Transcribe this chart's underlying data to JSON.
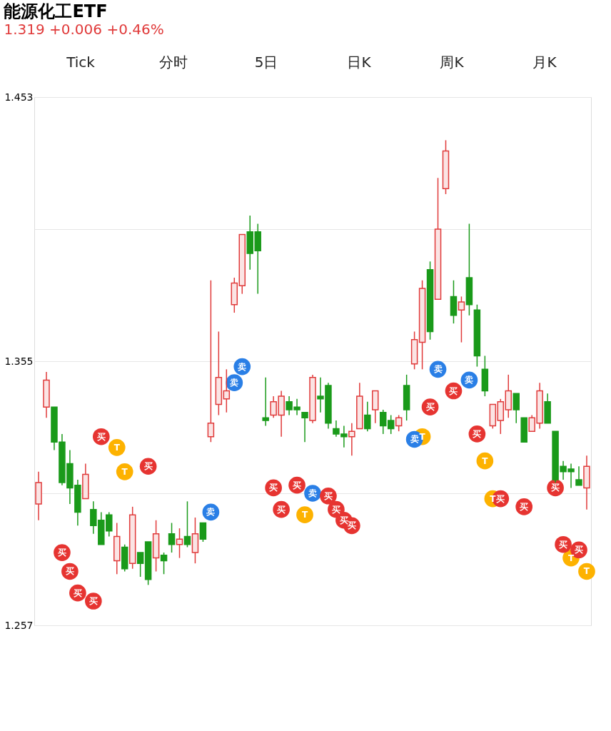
{
  "chart_data": {
    "type": "candlestick",
    "title": "能源化工ETF",
    "subtitle": "1.319 +0.006 +0.46%",
    "categories": [
      null,
      null,
      null,
      null,
      null,
      null,
      null,
      null,
      null,
      null,
      null,
      null,
      null,
      null,
      null,
      null,
      null,
      null,
      null,
      null,
      null,
      null,
      null,
      null,
      null,
      null,
      null,
      null,
      null,
      null,
      null,
      null,
      null,
      null,
      null,
      null,
      null,
      null,
      null,
      null,
      null,
      null,
      null,
      null,
      null,
      null,
      null,
      null,
      null,
      null,
      null,
      null,
      null,
      null,
      null,
      null,
      null,
      null,
      null,
      null,
      null,
      null,
      null,
      null,
      null,
      null,
      null,
      null,
      null,
      null,
      null
    ],
    "ohlc": [
      [
        1.302,
        1.314,
        1.296,
        1.31
      ],
      [
        1.338,
        1.351,
        1.334,
        1.348
      ],
      [
        1.338,
        1.338,
        1.322,
        1.325
      ],
      [
        1.325,
        1.328,
        1.309,
        1.31
      ],
      [
        1.317,
        1.322,
        1.302,
        1.308
      ],
      [
        1.309,
        1.311,
        1.294,
        1.299
      ],
      [
        1.304,
        1.317,
        1.304,
        1.313
      ],
      [
        1.3,
        1.303,
        1.291,
        1.294
      ],
      [
        1.296,
        1.299,
        1.287,
        1.287
      ],
      [
        1.298,
        1.299,
        1.29,
        1.292
      ],
      [
        1.281,
        1.295,
        1.276,
        1.29
      ],
      [
        1.286,
        1.287,
        1.277,
        1.278
      ],
      [
        1.28,
        1.301,
        1.278,
        1.298
      ],
      [
        1.284,
        1.284,
        1.275,
        1.28
      ],
      [
        1.288,
        1.288,
        1.272,
        1.274
      ],
      [
        1.282,
        1.296,
        1.277,
        1.291
      ],
      [
        1.283,
        1.284,
        1.276,
        1.281
      ],
      [
        1.291,
        1.295,
        1.284,
        1.287
      ],
      [
        1.287,
        1.293,
        1.282,
        1.289
      ],
      [
        1.29,
        1.303,
        1.286,
        1.287
      ],
      [
        1.284,
        1.297,
        1.28,
        1.291
      ],
      [
        1.295,
        1.295,
        1.288,
        1.289
      ],
      [
        1.327,
        1.385,
        1.325,
        1.332
      ],
      [
        1.339,
        1.366,
        1.335,
        1.349
      ],
      [
        1.341,
        1.352,
        1.336,
        1.344
      ],
      [
        1.376,
        1.386,
        1.373,
        1.384
      ],
      [
        1.383,
        1.402,
        1.38,
        1.402
      ],
      [
        1.403,
        1.409,
        1.389,
        1.395
      ],
      [
        1.403,
        1.406,
        1.38,
        1.396
      ],
      [
        1.334,
        1.349,
        1.331,
        1.333
      ],
      [
        1.335,
        1.342,
        1.334,
        1.34
      ],
      [
        1.335,
        1.344,
        1.327,
        1.342
      ],
      [
        1.34,
        1.342,
        1.335,
        1.337
      ],
      [
        1.338,
        1.341,
        1.335,
        1.337
      ],
      [
        1.336,
        1.336,
        1.325,
        1.334
      ],
      [
        1.333,
        1.35,
        1.332,
        1.349
      ],
      [
        1.342,
        1.349,
        1.336,
        1.341
      ],
      [
        1.346,
        1.347,
        1.33,
        1.332
      ],
      [
        1.33,
        1.333,
        1.327,
        1.328
      ],
      [
        1.328,
        1.331,
        1.323,
        1.327
      ],
      [
        1.327,
        1.332,
        1.32,
        1.329
      ],
      [
        1.33,
        1.347,
        1.33,
        1.342
      ],
      [
        1.335,
        1.34,
        1.329,
        1.33
      ],
      [
        1.337,
        1.344,
        1.332,
        1.344
      ],
      [
        1.336,
        1.337,
        1.328,
        1.331
      ],
      [
        1.333,
        1.335,
        1.328,
        1.33
      ],
      [
        1.331,
        1.335,
        1.329,
        1.334
      ],
      [
        1.346,
        1.35,
        1.333,
        1.337
      ],
      [
        1.354,
        1.366,
        1.352,
        1.363
      ],
      [
        1.362,
        1.385,
        1.352,
        1.382
      ],
      [
        1.389,
        1.392,
        1.363,
        1.366
      ],
      [
        1.378,
        1.423,
        1.378,
        1.404
      ],
      [
        1.419,
        1.437,
        1.417,
        1.433
      ],
      [
        1.379,
        1.385,
        1.369,
        1.372
      ],
      [
        1.374,
        1.379,
        1.362,
        1.377
      ],
      [
        1.386,
        1.406,
        1.372,
        1.376
      ],
      [
        1.374,
        1.376,
        1.353,
        1.357
      ],
      [
        1.352,
        1.357,
        1.342,
        1.344
      ],
      [
        1.331,
        1.339,
        1.33,
        1.339
      ],
      [
        1.333,
        1.341,
        1.328,
        1.34
      ],
      [
        1.337,
        1.35,
        1.334,
        1.344
      ],
      [
        1.343,
        1.343,
        1.332,
        1.337
      ],
      [
        1.334,
        1.334,
        1.325,
        1.325
      ],
      [
        1.329,
        1.335,
        1.329,
        1.334
      ],
      [
        1.332,
        1.347,
        1.33,
        1.344
      ],
      [
        1.34,
        1.343,
        1.332,
        1.332
      ],
      [
        1.329,
        1.329,
        1.31,
        1.311
      ],
      [
        1.316,
        1.318,
        1.311,
        1.314
      ],
      [
        1.315,
        1.317,
        1.308,
        1.314
      ],
      [
        1.311,
        1.316,
        1.309,
        1.309
      ],
      [
        1.308,
        1.32,
        1.3,
        1.316
      ]
    ],
    "series": [
      {
        "type": "scatter",
        "color": "#e63431",
        "values": [
          null,
          null,
          null,
          1.284,
          1.277,
          1.269,
          null,
          1.266,
          1.327,
          null,
          null,
          null,
          null,
          null,
          1.316,
          null,
          null,
          null,
          null,
          null,
          null,
          null,
          null,
          null,
          null,
          null,
          null,
          null,
          null,
          null,
          1.308,
          1.3,
          null,
          1.309,
          null,
          null,
          null,
          1.305,
          1.3,
          1.296,
          1.294,
          null,
          null,
          null,
          null,
          null,
          null,
          null,
          null,
          null,
          1.338,
          null,
          null,
          1.344,
          null,
          null,
          1.328,
          null,
          null,
          1.304,
          null,
          null,
          1.301,
          null,
          null,
          null,
          1.308,
          1.287,
          null,
          1.285,
          null
        ],
        "value_labels": [
          null,
          null,
          null,
          "买",
          "买",
          "买",
          null,
          "买",
          "买",
          null,
          null,
          null,
          null,
          null,
          "买",
          null,
          null,
          null,
          null,
          null,
          null,
          null,
          null,
          null,
          null,
          null,
          null,
          null,
          null,
          null,
          "买",
          "买",
          null,
          "买",
          null,
          null,
          null,
          "买",
          "买",
          "买",
          "买",
          null,
          null,
          null,
          null,
          null,
          null,
          null,
          null,
          null,
          "买",
          null,
          null,
          "买",
          null,
          null,
          "买",
          null,
          null,
          "买",
          null,
          null,
          "买",
          null,
          null,
          null,
          "买",
          "买",
          null,
          "买",
          null
        ]
      },
      {
        "type": "scatter",
        "color": "#2a7fe6",
        "values": [
          null,
          null,
          null,
          null,
          null,
          null,
          null,
          null,
          null,
          null,
          null,
          null,
          null,
          null,
          null,
          null,
          null,
          null,
          null,
          null,
          null,
          null,
          1.299,
          null,
          null,
          1.347,
          1.353,
          null,
          null,
          null,
          null,
          null,
          null,
          null,
          null,
          1.306,
          null,
          null,
          null,
          null,
          null,
          null,
          null,
          null,
          null,
          null,
          null,
          null,
          1.326,
          null,
          null,
          1.352,
          null,
          null,
          null,
          1.348,
          null,
          null,
          null,
          null,
          null,
          null,
          null,
          null,
          null,
          null,
          null,
          null,
          null,
          null,
          null
        ],
        "value_labels": [
          null,
          null,
          null,
          null,
          null,
          null,
          null,
          null,
          null,
          null,
          null,
          null,
          null,
          null,
          null,
          null,
          null,
          null,
          null,
          null,
          null,
          null,
          "卖",
          null,
          null,
          "卖",
          "卖",
          null,
          null,
          null,
          null,
          null,
          null,
          null,
          null,
          "卖",
          null,
          null,
          null,
          null,
          null,
          null,
          null,
          null,
          null,
          null,
          null,
          null,
          "卖",
          null,
          null,
          "卖",
          null,
          null,
          null,
          "卖",
          null,
          null,
          null,
          null,
          null,
          null,
          null,
          null,
          null,
          null,
          null,
          null,
          null,
          null,
          null
        ]
      },
      {
        "type": "scatter",
        "color": "#fdb200",
        "values": [
          null,
          null,
          null,
          null,
          null,
          null,
          null,
          null,
          null,
          null,
          1.323,
          1.314,
          null,
          null,
          null,
          null,
          null,
          null,
          null,
          null,
          null,
          null,
          null,
          null,
          null,
          null,
          null,
          null,
          null,
          null,
          null,
          null,
          null,
          null,
          1.298,
          null,
          null,
          null,
          null,
          null,
          null,
          null,
          null,
          null,
          null,
          null,
          null,
          null,
          null,
          1.327,
          null,
          null,
          null,
          null,
          null,
          null,
          null,
          1.318,
          1.304,
          null,
          null,
          null,
          null,
          null,
          null,
          null,
          null,
          null,
          1.282,
          null,
          1.277
        ],
        "value_labels": [
          null,
          null,
          null,
          null,
          null,
          null,
          null,
          null,
          null,
          null,
          "T",
          "T",
          null,
          null,
          null,
          null,
          null,
          null,
          null,
          null,
          null,
          null,
          null,
          null,
          null,
          null,
          null,
          null,
          null,
          null,
          null,
          null,
          null,
          null,
          "T",
          null,
          null,
          null,
          null,
          null,
          null,
          null,
          null,
          null,
          null,
          null,
          null,
          null,
          null,
          "T",
          null,
          null,
          null,
          null,
          null,
          null,
          null,
          "T",
          "T",
          null,
          null,
          null,
          null,
          null,
          null,
          null,
          null,
          null,
          "T",
          null,
          "T"
        ]
      }
    ],
    "marker": "circle",
    "annotations": [
      "Tick",
      "分时",
      "5日",
      "日K",
      "周K",
      "月K"
    ],
    "ylim": [
      1.257,
      1.453
    ],
    "yticks": [
      1.453,
      {
        "value": 1.404,
        "label": null
      },
      1.355,
      {
        "value": 1.306,
        "label": null
      },
      1.257
    ],
    "grid": "y",
    "tick_labels": "y"
  }
}
